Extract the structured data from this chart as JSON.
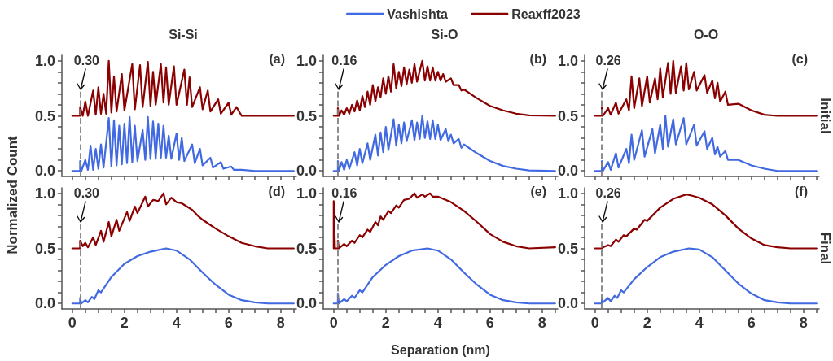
{
  "chart_data": [
    {
      "type": "line",
      "title": "Si-Si",
      "ylabel": "Normalized Count",
      "annotations": [
        "(a)"
      ],
      "marker": "none",
      "line_style": "solid",
      "tick_labels": "y",
      "xlim": [
        -0.4,
        8.6
      ],
      "ylim": [
        -0.05,
        1.05
      ],
      "xticks": [
        0,
        {
          "value": 0.5,
          "label": null
        },
        {
          "value": 1,
          "label": null
        },
        {
          "value": 1.5,
          "label": null
        },
        2,
        {
          "value": 2.5,
          "label": null
        },
        {
          "value": 3,
          "label": null
        },
        {
          "value": 3.5,
          "label": null
        },
        4,
        {
          "value": 4.5,
          "label": null
        },
        {
          "value": 5,
          "label": null
        },
        {
          "value": 5.5,
          "label": null
        },
        6,
        {
          "value": 6.5,
          "label": null
        },
        {
          "value": 7,
          "label": null
        },
        {
          "value": 7.5,
          "label": null
        },
        8,
        {
          "value": 8.5,
          "label": null
        }
      ],
      "yticks": [
        {
          "value": 0,
          "label": "0.0"
        },
        {
          "value": 0.1,
          "label": null
        },
        {
          "value": 0.2,
          "label": null
        },
        {
          "value": 0.3,
          "label": null
        },
        {
          "value": 0.4,
          "label": null
        },
        {
          "value": 0.5,
          "label": "0.5"
        },
        {
          "value": 0.6,
          "label": null
        },
        {
          "value": 0.7,
          "label": null
        },
        {
          "value": 0.8,
          "label": null
        },
        {
          "value": 0.9,
          "label": null
        },
        {
          "value": 1,
          "label": "1.0"
        }
      ],
      "ref_lines": [
        {
          "axis": "x",
          "value": 0.3,
          "label": "0.30",
          "color": "#808080",
          "line_style": "dashed"
        }
      ],
      "series": [
        {
          "color": "#4169e1",
          "x": [
            0,
            0.3,
            0.3,
            0.35,
            0.5,
            0.6,
            0.7,
            0.8,
            0.9,
            1.0,
            1.1,
            1.2,
            1.4,
            1.5,
            1.6,
            1.7,
            1.8,
            1.9,
            2.0,
            2.1,
            2.2,
            2.3,
            2.4,
            2.5,
            2.7,
            2.8,
            2.9,
            3.0,
            3.1,
            3.2,
            3.3,
            3.4,
            3.5,
            3.6,
            3.7,
            3.8,
            4.0,
            4.1,
            4.2,
            4.3,
            4.6,
            4.7,
            4.9,
            5.0,
            5.3,
            5.4,
            5.7,
            5.8,
            6.1,
            6.2,
            6.5,
            7,
            8.5
          ],
          "values": [
            0,
            0,
            0.09,
            0,
            0.1,
            0.01,
            0.23,
            0.01,
            0.2,
            0.02,
            0.24,
            0.03,
            0.48,
            0.04,
            0.46,
            0.05,
            0.41,
            0.06,
            0.43,
            0.07,
            0.49,
            0.08,
            0.41,
            0.09,
            0.37,
            0.1,
            0.49,
            0.11,
            0.45,
            0.11,
            0.43,
            0.12,
            0.41,
            0.12,
            0.32,
            0.11,
            0.34,
            0.1,
            0.3,
            0.09,
            0.24,
            0.07,
            0.2,
            0.05,
            0.12,
            0.03,
            0.08,
            0.02,
            0.04,
            0.01,
            0.01,
            0,
            0
          ]
        },
        {
          "color": "#8b0000",
          "x": [
            0,
            0.3,
            0.3,
            0.4,
            0.5,
            0.6,
            0.8,
            0.9,
            1.0,
            1.1,
            1.2,
            1.3,
            1.4,
            1.5,
            1.6,
            1.7,
            1.9,
            2.0,
            2.3,
            2.4,
            2.6,
            2.7,
            2.9,
            3.0,
            3.1,
            3.2,
            3.4,
            3.5,
            3.6,
            3.7,
            3.9,
            4.0,
            4.3,
            4.4,
            4.5,
            4.6,
            4.9,
            5.0,
            5.2,
            5.3,
            5.6,
            5.7,
            6.0,
            6.1,
            6.3,
            6.5,
            8.5
          ],
          "values": [
            0.5,
            0.5,
            0.58,
            0.5,
            0.63,
            0.5,
            0.73,
            0.51,
            0.76,
            0.52,
            0.7,
            0.52,
            1.0,
            0.53,
            0.86,
            0.54,
            0.88,
            0.55,
            0.97,
            0.56,
            0.96,
            0.58,
            0.99,
            0.59,
            0.9,
            0.6,
            0.97,
            0.62,
            0.94,
            0.6,
            0.95,
            0.6,
            0.92,
            0.6,
            0.85,
            0.58,
            0.76,
            0.56,
            0.73,
            0.54,
            0.65,
            0.52,
            0.62,
            0.51,
            0.58,
            0.5,
            0.5
          ]
        }
      ]
    },
    {
      "type": "line",
      "title": "Si-O",
      "annotations": [
        "(b)"
      ],
      "legend": "top",
      "marker": "none",
      "line_style": "solid",
      "tick_labels": "y",
      "xlim": [
        -0.4,
        8.6
      ],
      "ylim": [
        -0.05,
        1.05
      ],
      "xticks": [
        0,
        {
          "value": 0.5,
          "label": null
        },
        {
          "value": 1,
          "label": null
        },
        {
          "value": 1.5,
          "label": null
        },
        2,
        {
          "value": 2.5,
          "label": null
        },
        {
          "value": 3,
          "label": null
        },
        {
          "value": 3.5,
          "label": null
        },
        4,
        {
          "value": 4.5,
          "label": null
        },
        {
          "value": 5,
          "label": null
        },
        {
          "value": 5.5,
          "label": null
        },
        6,
        {
          "value": 6.5,
          "label": null
        },
        {
          "value": 7,
          "label": null
        },
        {
          "value": 7.5,
          "label": null
        },
        8,
        {
          "value": 8.5,
          "label": null
        }
      ],
      "yticks": [
        {
          "value": 0,
          "label": "0.0"
        },
        {
          "value": 0.1,
          "label": null
        },
        {
          "value": 0.2,
          "label": null
        },
        {
          "value": 0.3,
          "label": null
        },
        {
          "value": 0.4,
          "label": null
        },
        {
          "value": 0.5,
          "label": "0.5"
        },
        {
          "value": 0.6,
          "label": null
        },
        {
          "value": 0.7,
          "label": null
        },
        {
          "value": 0.8,
          "label": null
        },
        {
          "value": 0.9,
          "label": null
        },
        {
          "value": 1,
          "label": "1.0"
        }
      ],
      "ref_lines": [
        {
          "axis": "x",
          "value": 0.16,
          "label": "0.16",
          "color": "#808080",
          "line_style": "dashed"
        }
      ],
      "series": [
        {
          "name": "Vashishta",
          "color": "#4169e1",
          "x": [
            0,
            0.16,
            0.16,
            0.2,
            0.3,
            0.4,
            0.5,
            0.6,
            0.8,
            0.9,
            1.0,
            1.1,
            1.3,
            1.4,
            1.6,
            1.7,
            1.8,
            1.9,
            2.0,
            2.1,
            2.3,
            2.4,
            2.5,
            2.6,
            2.7,
            2.8,
            3.0,
            3.1,
            3.2,
            3.3,
            3.4,
            3.5,
            3.6,
            3.7,
            3.8,
            3.9,
            4.0,
            4.1,
            4.3,
            4.4,
            4.5,
            4.6,
            4.8,
            4.9,
            5.0,
            5.5,
            6.0,
            6.5,
            7.0,
            7.5,
            8.5
          ],
          "values": [
            0,
            0,
            0.09,
            0,
            0.08,
            0.01,
            0.1,
            0.02,
            0.17,
            0.05,
            0.2,
            0.07,
            0.25,
            0.1,
            0.33,
            0.14,
            0.35,
            0.17,
            0.4,
            0.19,
            0.47,
            0.23,
            0.42,
            0.25,
            0.44,
            0.27,
            0.46,
            0.28,
            0.44,
            0.29,
            0.5,
            0.3,
            0.45,
            0.29,
            0.46,
            0.29,
            0.42,
            0.28,
            0.38,
            0.27,
            0.33,
            0.25,
            0.29,
            0.21,
            0.24,
            0.16,
            0.09,
            0.045,
            0.02,
            0.005,
            0
          ]
        },
        {
          "name": "Reaxff2023",
          "color": "#8b0000",
          "x": [
            0,
            0.16,
            0.16,
            0.2,
            0.3,
            0.4,
            0.5,
            0.6,
            0.7,
            0.8,
            0.9,
            1.0,
            1.1,
            1.2,
            1.3,
            1.4,
            1.5,
            1.6,
            1.7,
            1.8,
            1.9,
            2.0,
            2.1,
            2.2,
            2.3,
            2.4,
            2.5,
            2.6,
            2.7,
            2.8,
            2.9,
            3.0,
            3.1,
            3.2,
            3.4,
            3.5,
            3.6,
            3.7,
            3.8,
            3.9,
            4.0,
            4.1,
            4.2,
            4.3,
            4.5,
            4.6,
            4.8,
            4.9,
            5.0,
            5.5,
            6.0,
            6.5,
            7.0,
            7.5,
            8.5
          ],
          "values": [
            0.5,
            0.5,
            0.57,
            0.5,
            0.55,
            0.51,
            0.57,
            0.52,
            0.6,
            0.54,
            0.64,
            0.55,
            0.68,
            0.58,
            0.72,
            0.6,
            0.78,
            0.63,
            0.76,
            0.67,
            0.84,
            0.7,
            0.86,
            0.72,
            0.97,
            0.75,
            0.9,
            0.77,
            0.94,
            0.79,
            0.92,
            0.8,
            0.97,
            0.81,
            1.0,
            0.82,
            0.95,
            0.82,
            0.94,
            0.82,
            0.9,
            0.82,
            0.88,
            0.81,
            0.84,
            0.78,
            0.78,
            0.73,
            0.74,
            0.66,
            0.59,
            0.55,
            0.52,
            0.505,
            0.5
          ]
        }
      ]
    },
    {
      "type": "line",
      "title": "O-O",
      "y2label": "Initial",
      "annotations": [
        "(c)"
      ],
      "marker": "none",
      "line_style": "solid",
      "tick_labels": "y",
      "xlim": [
        -0.4,
        8.6
      ],
      "ylim": [
        -0.05,
        1.05
      ],
      "xticks": [
        0,
        {
          "value": 0.5,
          "label": null
        },
        {
          "value": 1,
          "label": null
        },
        {
          "value": 1.5,
          "label": null
        },
        2,
        {
          "value": 2.5,
          "label": null
        },
        {
          "value": 3,
          "label": null
        },
        {
          "value": 3.5,
          "label": null
        },
        4,
        {
          "value": 4.5,
          "label": null
        },
        {
          "value": 5,
          "label": null
        },
        {
          "value": 5.5,
          "label": null
        },
        6,
        {
          "value": 6.5,
          "label": null
        },
        {
          "value": 7,
          "label": null
        },
        {
          "value": 7.5,
          "label": null
        },
        8,
        {
          "value": 8.5,
          "label": null
        }
      ],
      "yticks": [
        {
          "value": 0,
          "label": "0.0"
        },
        {
          "value": 0.1,
          "label": null
        },
        {
          "value": 0.2,
          "label": null
        },
        {
          "value": 0.3,
          "label": null
        },
        {
          "value": 0.4,
          "label": null
        },
        {
          "value": 0.5,
          "label": "0.5"
        },
        {
          "value": 0.6,
          "label": null
        },
        {
          "value": 0.7,
          "label": null
        },
        {
          "value": 0.8,
          "label": null
        },
        {
          "value": 0.9,
          "label": null
        },
        {
          "value": 1,
          "label": "1.0"
        }
      ],
      "ref_lines": [
        {
          "axis": "x",
          "value": 0.26,
          "label": "0.26",
          "color": "#808080",
          "line_style": "dashed"
        }
      ],
      "series": [
        {
          "color": "#4169e1",
          "x": [
            0,
            0.26,
            0.26,
            0.3,
            0.5,
            0.6,
            0.8,
            0.9,
            1.2,
            1.3,
            1.4,
            1.5,
            1.8,
            1.9,
            2.2,
            2.3,
            2.5,
            2.6,
            2.7,
            2.8,
            3.0,
            3.1,
            3.4,
            3.5,
            3.8,
            3.9,
            4.2,
            4.3,
            4.5,
            4.6,
            4.7,
            4.8,
            5.0,
            5.1,
            5.5,
            6.0,
            6.5,
            7.0,
            8.5
          ],
          "values": [
            0,
            0,
            0.09,
            0,
            0.08,
            0.01,
            0.16,
            0.03,
            0.2,
            0.07,
            0.33,
            0.1,
            0.37,
            0.13,
            0.38,
            0.16,
            0.42,
            0.2,
            0.5,
            0.22,
            0.47,
            0.24,
            0.48,
            0.24,
            0.42,
            0.23,
            0.36,
            0.2,
            0.3,
            0.15,
            0.22,
            0.13,
            0.18,
            0.1,
            0.1,
            0.05,
            0.02,
            0,
            0
          ]
        },
        {
          "color": "#8b0000",
          "x": [
            0,
            0.26,
            0.26,
            0.3,
            0.5,
            0.6,
            0.8,
            0.9,
            1.2,
            1.3,
            1.4,
            1.5,
            1.7,
            1.8,
            2.0,
            2.1,
            2.3,
            2.4,
            2.5,
            2.6,
            2.8,
            2.9,
            3.0,
            3.1,
            3.3,
            3.4,
            3.5,
            3.6,
            3.8,
            3.9,
            4.2,
            4.3,
            4.5,
            4.6,
            4.7,
            4.8,
            5.0,
            5.1,
            5.5,
            6.0,
            6.5,
            7.0,
            8.5
          ],
          "values": [
            0.5,
            0.5,
            0.58,
            0.5,
            0.57,
            0.51,
            0.62,
            0.52,
            0.65,
            0.55,
            0.86,
            0.57,
            0.84,
            0.59,
            0.86,
            0.62,
            0.84,
            0.65,
            0.93,
            0.67,
            0.98,
            0.7,
            1.0,
            0.71,
            0.95,
            0.73,
            0.98,
            0.74,
            0.9,
            0.73,
            0.87,
            0.71,
            0.82,
            0.66,
            0.8,
            0.63,
            0.72,
            0.6,
            0.61,
            0.55,
            0.51,
            0.5,
            0.5
          ]
        }
      ]
    },
    {
      "type": "line",
      "annotations": [
        "(d)"
      ],
      "marker": "none",
      "line_style": "solid",
      "xlim": [
        -0.4,
        8.6
      ],
      "ylim": [
        -0.05,
        1.05
      ],
      "xticks": [
        0,
        {
          "value": 0.5,
          "label": null
        },
        {
          "value": 1,
          "label": null
        },
        {
          "value": 1.5,
          "label": null
        },
        2,
        {
          "value": 2.5,
          "label": null
        },
        {
          "value": 3,
          "label": null
        },
        {
          "value": 3.5,
          "label": null
        },
        4,
        {
          "value": 4.5,
          "label": null
        },
        {
          "value": 5,
          "label": null
        },
        {
          "value": 5.5,
          "label": null
        },
        6,
        {
          "value": 6.5,
          "label": null
        },
        {
          "value": 7,
          "label": null
        },
        {
          "value": 7.5,
          "label": null
        },
        8,
        {
          "value": 8.5,
          "label": null
        }
      ],
      "yticks": [
        {
          "value": 0,
          "label": "0.0"
        },
        {
          "value": 0.1,
          "label": null
        },
        {
          "value": 0.2,
          "label": null
        },
        {
          "value": 0.3,
          "label": null
        },
        {
          "value": 0.4,
          "label": null
        },
        {
          "value": 0.5,
          "label": "0.5"
        },
        {
          "value": 0.6,
          "label": null
        },
        {
          "value": 0.7,
          "label": null
        },
        {
          "value": 0.8,
          "label": null
        },
        {
          "value": 0.9,
          "label": null
        },
        {
          "value": 1,
          "label": "1.0"
        }
      ],
      "ref_lines": [
        {
          "axis": "x",
          "value": 0.3,
          "label": "0.30",
          "color": "#808080",
          "line_style": "dashed"
        }
      ],
      "series": [
        {
          "color": "#4169e1",
          "x": [
            0,
            0.3,
            0.3,
            0.35,
            0.5,
            0.6,
            0.75,
            0.85,
            1.0,
            1.1,
            1.5,
            2.0,
            2.5,
            3.0,
            3.6,
            4.0,
            4.5,
            5.0,
            5.5,
            6.0,
            6.5,
            7.0,
            7.5,
            8.5
          ],
          "values": [
            0,
            0,
            0.05,
            0,
            0.03,
            0.01,
            0.06,
            0.04,
            0.12,
            0.1,
            0.24,
            0.36,
            0.43,
            0.47,
            0.5,
            0.48,
            0.4,
            0.28,
            0.17,
            0.08,
            0.03,
            0.01,
            0,
            0
          ]
        },
        {
          "color": "#8b0000",
          "x": [
            0,
            0.3,
            0.3,
            0.4,
            0.5,
            0.6,
            0.8,
            0.9,
            1.1,
            1.2,
            1.4,
            1.5,
            1.7,
            1.8,
            2.1,
            2.2,
            2.4,
            2.5,
            2.8,
            2.9,
            3.1,
            3.3,
            3.5,
            3.6,
            3.8,
            4.0,
            4.2,
            4.4,
            4.6,
            4.8,
            5.0,
            5.5,
            6.0,
            6.5,
            7.0,
            7.5,
            8.5
          ],
          "values": [
            0.5,
            0.5,
            0.57,
            0.52,
            0.55,
            0.51,
            0.6,
            0.53,
            0.66,
            0.56,
            0.74,
            0.61,
            0.76,
            0.66,
            0.83,
            0.75,
            0.88,
            0.82,
            0.97,
            0.88,
            0.94,
            0.93,
            1.0,
            0.9,
            0.96,
            0.92,
            0.91,
            0.88,
            0.85,
            0.8,
            0.76,
            0.68,
            0.61,
            0.55,
            0.52,
            0.5,
            0.5
          ]
        }
      ]
    },
    {
      "type": "line",
      "xlabel": "Separation (nm)",
      "annotations": [
        "(e)"
      ],
      "marker": "none",
      "line_style": "solid",
      "xlim": [
        -0.4,
        8.6
      ],
      "ylim": [
        -0.05,
        1.05
      ],
      "xticks": [
        0,
        {
          "value": 0.5,
          "label": null
        },
        {
          "value": 1,
          "label": null
        },
        {
          "value": 1.5,
          "label": null
        },
        2,
        {
          "value": 2.5,
          "label": null
        },
        {
          "value": 3,
          "label": null
        },
        {
          "value": 3.5,
          "label": null
        },
        4,
        {
          "value": 4.5,
          "label": null
        },
        {
          "value": 5,
          "label": null
        },
        {
          "value": 5.5,
          "label": null
        },
        6,
        {
          "value": 6.5,
          "label": null
        },
        {
          "value": 7,
          "label": null
        },
        {
          "value": 7.5,
          "label": null
        },
        8,
        {
          "value": 8.5,
          "label": null
        }
      ],
      "yticks": [
        {
          "value": 0,
          "label": "0.0"
        },
        {
          "value": 0.1,
          "label": null
        },
        {
          "value": 0.2,
          "label": null
        },
        {
          "value": 0.3,
          "label": null
        },
        {
          "value": 0.4,
          "label": null
        },
        {
          "value": 0.5,
          "label": "0.5"
        },
        {
          "value": 0.6,
          "label": null
        },
        {
          "value": 0.7,
          "label": null
        },
        {
          "value": 0.8,
          "label": null
        },
        {
          "value": 0.9,
          "label": null
        },
        {
          "value": 1,
          "label": "1.0"
        }
      ],
      "ref_lines": [
        {
          "axis": "x",
          "value": 0.16,
          "label": "0.16",
          "color": "#808080",
          "line_style": "dashed"
        }
      ],
      "series": [
        {
          "color": "#4169e1",
          "x": [
            0,
            0.16,
            0.16,
            0.2,
            0.4,
            0.5,
            0.7,
            0.8,
            1.0,
            1.1,
            1.5,
            2.0,
            2.5,
            3.0,
            3.6,
            4.0,
            4.5,
            5.0,
            5.5,
            6.0,
            6.5,
            7.0,
            7.5,
            8.5
          ],
          "values": [
            0,
            0,
            0.09,
            0,
            0.04,
            0.02,
            0.07,
            0.05,
            0.12,
            0.1,
            0.24,
            0.35,
            0.43,
            0.48,
            0.5,
            0.48,
            0.4,
            0.28,
            0.17,
            0.08,
            0.03,
            0.01,
            0,
            0
          ]
        },
        {
          "color": "#8b0000",
          "x": [
            0,
            0,
            0.05,
            0.16,
            0.16,
            0.2,
            0.4,
            0.5,
            0.7,
            0.8,
            1.0,
            1.1,
            1.3,
            1.4,
            1.6,
            1.7,
            1.8,
            1.9,
            2.1,
            2.2,
            2.4,
            2.5,
            2.7,
            2.9,
            3.1,
            3.2,
            3.4,
            3.5,
            3.7,
            3.8,
            4.0,
            4.2,
            4.5,
            5.0,
            5.5,
            6.0,
            6.5,
            7.0,
            7.5,
            8.5
          ],
          "values": [
            0.5,
            0.93,
            0.5,
            0.5,
            0.57,
            0.5,
            0.54,
            0.52,
            0.57,
            0.55,
            0.62,
            0.6,
            0.67,
            0.65,
            0.74,
            0.71,
            0.79,
            0.76,
            0.84,
            0.82,
            0.89,
            0.87,
            0.94,
            0.95,
            1.0,
            0.96,
            0.99,
            0.97,
            1.0,
            0.97,
            0.97,
            0.95,
            0.92,
            0.84,
            0.74,
            0.63,
            0.56,
            0.52,
            0.5,
            0.51
          ]
        }
      ]
    },
    {
      "type": "line",
      "y2label": "Final",
      "annotations": [
        "(f)"
      ],
      "marker": "none",
      "line_style": "solid",
      "xlim": [
        -0.4,
        8.6
      ],
      "ylim": [
        -0.05,
        1.05
      ],
      "xticks": [
        0,
        {
          "value": 0.5,
          "label": null
        },
        {
          "value": 1,
          "label": null
        },
        {
          "value": 1.5,
          "label": null
        },
        2,
        {
          "value": 2.5,
          "label": null
        },
        {
          "value": 3,
          "label": null
        },
        {
          "value": 3.5,
          "label": null
        },
        4,
        {
          "value": 4.5,
          "label": null
        },
        {
          "value": 5,
          "label": null
        },
        {
          "value": 5.5,
          "label": null
        },
        6,
        {
          "value": 6.5,
          "label": null
        },
        {
          "value": 7,
          "label": null
        },
        {
          "value": 7.5,
          "label": null
        },
        8,
        {
          "value": 8.5,
          "label": null
        }
      ],
      "yticks": [
        {
          "value": 0,
          "label": "0.0"
        },
        {
          "value": 0.1,
          "label": null
        },
        {
          "value": 0.2,
          "label": null
        },
        {
          "value": 0.3,
          "label": null
        },
        {
          "value": 0.4,
          "label": null
        },
        {
          "value": 0.5,
          "label": "0.5"
        },
        {
          "value": 0.6,
          "label": null
        },
        {
          "value": 0.7,
          "label": null
        },
        {
          "value": 0.8,
          "label": null
        },
        {
          "value": 0.9,
          "label": null
        },
        {
          "value": 1,
          "label": "1.0"
        }
      ],
      "ref_lines": [
        {
          "axis": "x",
          "value": 0.26,
          "label": "0.26",
          "color": "#808080",
          "line_style": "dashed"
        }
      ],
      "series": [
        {
          "color": "#4169e1",
          "x": [
            0,
            0.26,
            0.26,
            0.3,
            0.5,
            0.6,
            0.75,
            0.85,
            1.0,
            1.1,
            1.5,
            2.0,
            2.5,
            3.0,
            3.6,
            4.0,
            4.5,
            5.0,
            5.5,
            6.0,
            6.5,
            7.0,
            7.5,
            8.5
          ],
          "values": [
            0,
            0,
            0.05,
            0.01,
            0.05,
            0.02,
            0.07,
            0.05,
            0.12,
            0.1,
            0.22,
            0.33,
            0.42,
            0.47,
            0.5,
            0.49,
            0.42,
            0.3,
            0.18,
            0.09,
            0.03,
            0.01,
            0,
            0
          ]
        },
        {
          "color": "#8b0000",
          "x": [
            0,
            0.26,
            0.3,
            0.5,
            0.6,
            0.8,
            0.9,
            1.1,
            1.2,
            1.5,
            1.6,
            1.9,
            2.0,
            2.5,
            3.0,
            3.5,
            3.7,
            4.0,
            4.5,
            5.0,
            5.5,
            6.0,
            6.5,
            7.0,
            7.5,
            8.5
          ],
          "values": [
            0.5,
            0.5,
            0.51,
            0.53,
            0.52,
            0.58,
            0.56,
            0.62,
            0.61,
            0.68,
            0.67,
            0.76,
            0.75,
            0.87,
            0.95,
            0.99,
            0.98,
            0.96,
            0.9,
            0.8,
            0.68,
            0.59,
            0.53,
            0.51,
            0.5,
            0.5
          ]
        }
      ]
    }
  ]
}
